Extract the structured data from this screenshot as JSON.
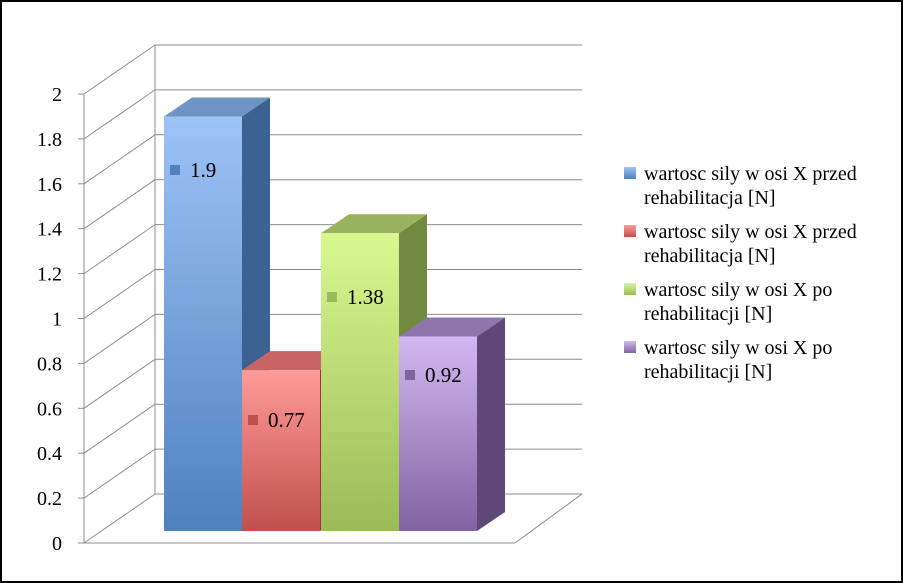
{
  "chart_data": {
    "type": "bar",
    "style": "3d-column",
    "categories": [
      ""
    ],
    "series": [
      {
        "name": "wartosc sily w osi X przed rehabilitacja [N]",
        "values": [
          1.9
        ],
        "color": "#4f81bd",
        "light": "#9dc3f7",
        "side": "#3b6291",
        "top": "#6e94c4"
      },
      {
        "name": "wartosc sily w osi X przed rehabilitacja [N]",
        "values": [
          0.77
        ],
        "color": "#c0504d",
        "light": "#ff9b98",
        "side": "#923a38",
        "top": "#c86462"
      },
      {
        "name": "wartosc sily w osi X po rehabilitacji [N]",
        "values": [
          1.38
        ],
        "color": "#9bbb59",
        "light": "#d9f890",
        "side": "#718a3f",
        "top": "#98b25e"
      },
      {
        "name": "wartosc sily w osi X po rehabilitacji [N]",
        "values": [
          0.92
        ],
        "color": "#8064a2",
        "light": "#d2b8f2",
        "side": "#5d4878",
        "top": "#8d76ab"
      }
    ],
    "data_labels": [
      "1.9",
      "0.77",
      "1.38",
      "0.92"
    ],
    "y_ticks": [
      "0",
      "0.2",
      "0.4",
      "0.6",
      "0.8",
      "1",
      "1.2",
      "1.4",
      "1.6",
      "1.8",
      "2"
    ],
    "ylim": [
      0,
      2
    ],
    "gridlines": true,
    "legend_position": "right",
    "title": "",
    "xlabel": "",
    "ylabel": ""
  }
}
